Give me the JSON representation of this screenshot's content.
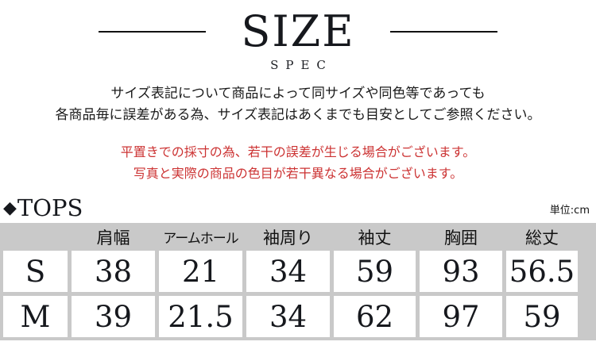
{
  "header": {
    "title": "SIZE",
    "subtitle": "SPEC"
  },
  "intro": {
    "line1": "サイズ表記について商品によって同サイズや同色等であっても",
    "line2": "各商品毎に誤差がある為、サイズ表記はあくまでも目安としてご参照ください。"
  },
  "notice": {
    "line1": "平置きでの採寸の為、若干の誤差が生じる場合がございます。",
    "line2": "写真と実際の商品の色目が若干異なる場合がございます。",
    "color": "#cc3333"
  },
  "section": {
    "diamond": "◆",
    "label": "TOPS",
    "unit": "単位:cm"
  },
  "table": {
    "columns": [
      "肩幅",
      "アームホール",
      "袖周り",
      "袖丈",
      "胸囲",
      "総丈"
    ],
    "rows": [
      {
        "size": "S",
        "values": [
          "38",
          "21",
          "34",
          "59",
          "93",
          "56.5"
        ]
      },
      {
        "size": "M",
        "values": [
          "39",
          "21.5",
          "34",
          "62",
          "97",
          "59"
        ]
      }
    ]
  },
  "colors": {
    "table_background": "#c9c9c9",
    "accent_red": "#cc3333",
    "text_black": "#111111"
  }
}
